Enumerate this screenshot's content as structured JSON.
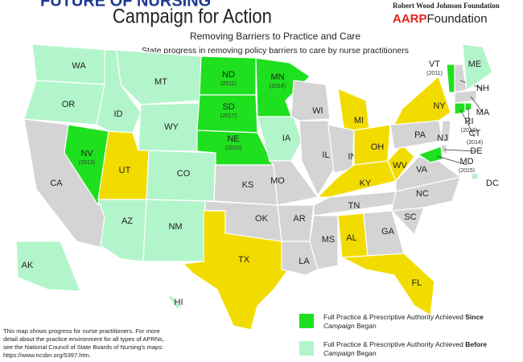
{
  "header": {
    "kicker": "FUTURE OF NURSING",
    "title": "Campaign for Action",
    "sponsor_1": "Robert Wood Johnson Foundation",
    "sponsor_2_mark": "AARP",
    "sponsor_2_name": "Foundation",
    "subtitle": "Removing Barriers to Practice and Care",
    "description": "State progress in removing policy barriers to care by nurse practitioners"
  },
  "states": [
    {
      "label": "WA",
      "color": "#b3f5cb"
    },
    {
      "label": "OR",
      "color": "#b3f5cb"
    },
    {
      "label": "CA",
      "color": "#d4d4d4"
    },
    {
      "label": "NV",
      "year": "(2013)",
      "color": "#1ee01e"
    },
    {
      "label": "ID",
      "color": "#b3f5cb"
    },
    {
      "label": "MT",
      "color": "#b3f5cb"
    },
    {
      "label": "WY",
      "color": "#b3f5cb"
    },
    {
      "label": "UT",
      "color": "#f2dc00"
    },
    {
      "label": "CO",
      "color": "#b3f5cb"
    },
    {
      "label": "AZ",
      "color": "#b3f5cb"
    },
    {
      "label": "NM",
      "color": "#b3f5cb"
    },
    {
      "label": "ND",
      "year": "(2011)",
      "color": "#1ee01e"
    },
    {
      "label": "SD",
      "year": "(2017)",
      "color": "#1ee01e"
    },
    {
      "label": "NE",
      "year": "(2015)",
      "color": "#1ee01e"
    },
    {
      "label": "KS",
      "color": "#d4d4d4"
    },
    {
      "label": "OK",
      "color": "#d4d4d4"
    },
    {
      "label": "TX",
      "color": "#f2dc00"
    },
    {
      "label": "MN",
      "year": "(2014)",
      "color": "#1ee01e"
    },
    {
      "label": "IA",
      "color": "#b3f5cb"
    },
    {
      "label": "MO",
      "color": "#d4d4d4"
    },
    {
      "label": "AR",
      "color": "#d4d4d4"
    },
    {
      "label": "LA",
      "color": "#d4d4d4"
    },
    {
      "label": "WI",
      "color": "#d4d4d4"
    },
    {
      "label": "IL",
      "color": "#d4d4d4"
    },
    {
      "label": "MI",
      "color": "#f2dc00"
    },
    {
      "label": "IN",
      "color": "#d4d4d4"
    },
    {
      "label": "OH",
      "color": "#f2dc00"
    },
    {
      "label": "KY",
      "color": "#f2dc00"
    },
    {
      "label": "TN",
      "color": "#d4d4d4"
    },
    {
      "label": "MS",
      "color": "#d4d4d4"
    },
    {
      "label": "AL",
      "color": "#f2dc00"
    },
    {
      "label": "GA",
      "color": "#d4d4d4"
    },
    {
      "label": "FL",
      "color": "#f2dc00"
    },
    {
      "label": "SC",
      "color": "#d4d4d4"
    },
    {
      "label": "NC",
      "color": "#d4d4d4"
    },
    {
      "label": "VA",
      "color": "#d4d4d4"
    },
    {
      "label": "WV",
      "color": "#f2dc00"
    },
    {
      "label": "PA",
      "color": "#d4d4d4"
    },
    {
      "label": "NY",
      "color": "#f2dc00"
    },
    {
      "label": "VT",
      "year": "(2011)",
      "color": "#1ee01e"
    },
    {
      "label": "NH",
      "color": "#d4d4d4"
    },
    {
      "label": "ME",
      "color": "#b3f5cb"
    },
    {
      "label": "MA",
      "color": "#d4d4d4"
    },
    {
      "label": "CT",
      "year": "(2014)",
      "color": "#1ee01e"
    },
    {
      "label": "RI",
      "year": "(2013)",
      "color": "#1ee01e"
    },
    {
      "label": "NJ",
      "color": "#d4d4d4"
    },
    {
      "label": "DE",
      "color": "#d4d4d4"
    },
    {
      "label": "MD",
      "year": "(2015)",
      "color": "#1ee01e"
    },
    {
      "label": "DC",
      "color": "#b3f5cb"
    },
    {
      "label": "AK",
      "color": "#b3f5cb"
    },
    {
      "label": "HI",
      "color": "#b3f5cb"
    }
  ],
  "note": [
    "This map shows progress for nurse practitioners. For more",
    "detail about the practice environment for all types of APRNs,",
    "see the National Council of State Boards of Nursing's maps:",
    "https://www.ncsbn.org/5397.htm."
  ],
  "legend": [
    {
      "color": "#1ee01e",
      "line_1": [
        "Full Practice & Prescriptive Authority Achieved ",
        "Since"
      ],
      "line_2": [
        "Campaign",
        " Began"
      ]
    },
    {
      "color": "#b3f5cb",
      "line_1": [
        "Full Practice & Prescriptive Authority Achieved ",
        "Before"
      ],
      "line_2": [
        "Campaign",
        " Began"
      ]
    }
  ]
}
